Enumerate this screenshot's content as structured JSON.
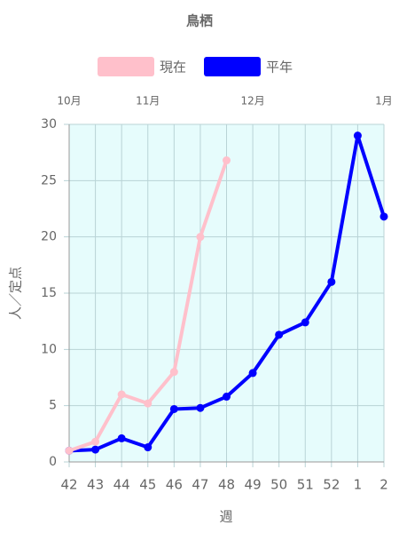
{
  "chart_data": {
    "type": "line",
    "title": "鳥栖",
    "categories": [
      "42",
      "43",
      "44",
      "45",
      "46",
      "47",
      "48",
      "49",
      "50",
      "51",
      "52",
      "1",
      "2"
    ],
    "month_labels": [
      {
        "at": "42",
        "label": "10月"
      },
      {
        "at": "45",
        "label": "11月"
      },
      {
        "at": "49",
        "label": "12月"
      },
      {
        "at": "2",
        "label": "1月"
      }
    ],
    "series": [
      {
        "name": "現在",
        "color": "#ffc0cb",
        "values": [
          1.0,
          1.8,
          6.0,
          5.2,
          8.0,
          20.0,
          26.8,
          null,
          null,
          null,
          null,
          null,
          null
        ]
      },
      {
        "name": "平年",
        "color": "#0000ff",
        "values": [
          1.0,
          1.1,
          2.1,
          1.3,
          4.7,
          4.8,
          5.8,
          7.9,
          11.3,
          12.4,
          16.0,
          29.0,
          21.8
        ]
      }
    ],
    "ylim": [
      0,
      30
    ],
    "yticks": [
      0,
      5,
      10,
      15,
      20,
      25,
      30
    ],
    "y_label": "人／定点",
    "x_label": "週",
    "grid": true,
    "plot_background": "#e6fcfc"
  }
}
